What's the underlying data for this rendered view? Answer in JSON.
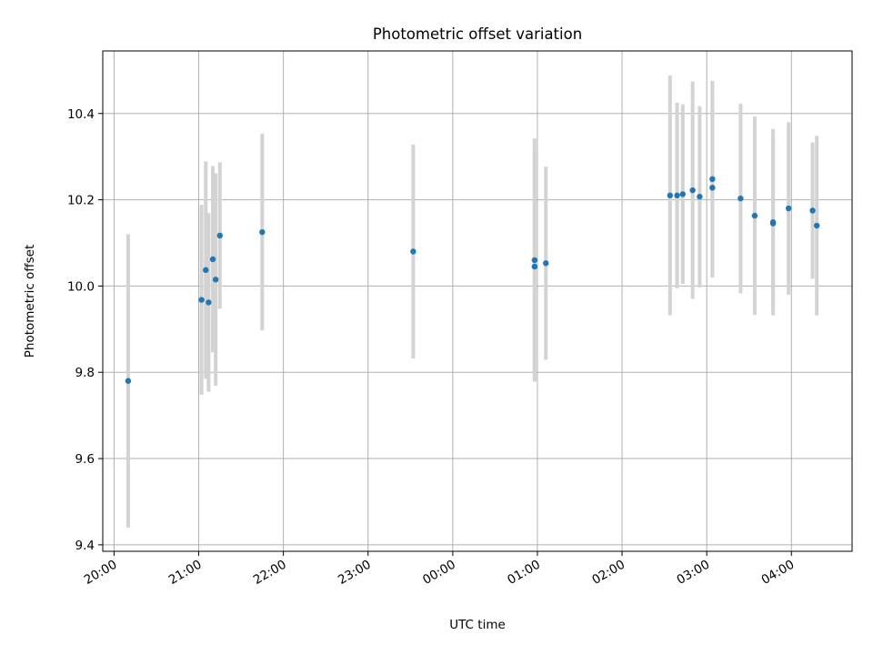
{
  "chart_data": {
    "type": "scatter",
    "title": "Photometric offset variation",
    "xlabel": "UTC time",
    "ylabel": "Photometric offset",
    "xlim": [
      "19:52",
      "04:43"
    ],
    "ylim": [
      9.385,
      10.545
    ],
    "grid": true,
    "x_ticks": [
      "20:00",
      "21:00",
      "22:00",
      "23:00",
      "00:00",
      "01:00",
      "02:00",
      "03:00",
      "04:00"
    ],
    "y_ticks": [
      9.4,
      9.6,
      9.8,
      10.0,
      10.2,
      10.4
    ],
    "y_tick_labels": [
      "9.4",
      "9.6",
      "9.8",
      "10.0",
      "10.2",
      "10.4"
    ],
    "colors": {
      "points": "#1f77b4",
      "errorbars": "#d3d3d3",
      "grid": "#b0b0b0"
    },
    "series": [
      {
        "points": [
          {
            "x": "20:10",
            "y": 9.78,
            "lo": 9.44,
            "hi": 10.12
          },
          {
            "x": "21:02",
            "y": 9.968,
            "lo": 9.748,
            "hi": 10.188
          },
          {
            "x": "21:05",
            "y": 10.037,
            "lo": 9.785,
            "hi": 10.289
          },
          {
            "x": "21:07",
            "y": 9.962,
            "lo": 9.755,
            "hi": 10.169
          },
          {
            "x": "21:10",
            "y": 10.062,
            "lo": 9.846,
            "hi": 10.278
          },
          {
            "x": "21:12",
            "y": 10.015,
            "lo": 9.769,
            "hi": 10.261
          },
          {
            "x": "21:15",
            "y": 10.117,
            "lo": 9.947,
            "hi": 10.287
          },
          {
            "x": "21:45",
            "y": 10.125,
            "lo": 9.897,
            "hi": 10.353
          },
          {
            "x": "23:32",
            "y": 10.08,
            "lo": 9.832,
            "hi": 10.328
          },
          {
            "x": "00:58",
            "y": 10.045,
            "lo": 9.781,
            "hi": 10.309
          },
          {
            "x": "00:58",
            "y": 10.06,
            "lo": 9.778,
            "hi": 10.342
          },
          {
            "x": "01:06",
            "y": 10.053,
            "lo": 9.829,
            "hi": 10.277
          },
          {
            "x": "02:34",
            "y": 10.21,
            "lo": 9.932,
            "hi": 10.488
          },
          {
            "x": "02:39",
            "y": 10.21,
            "lo": 9.995,
            "hi": 10.425
          },
          {
            "x": "02:43",
            "y": 10.213,
            "lo": 10.005,
            "hi": 10.421
          },
          {
            "x": "02:50",
            "y": 10.222,
            "lo": 9.97,
            "hi": 10.474
          },
          {
            "x": "02:55",
            "y": 10.207,
            "lo": 9.997,
            "hi": 10.417
          },
          {
            "x": "03:04",
            "y": 10.248,
            "lo": 10.02,
            "hi": 10.476
          },
          {
            "x": "03:04",
            "y": 10.228,
            "lo": 10.02,
            "hi": 10.436
          },
          {
            "x": "03:24",
            "y": 10.203,
            "lo": 9.983,
            "hi": 10.423
          },
          {
            "x": "03:34",
            "y": 10.163,
            "lo": 9.933,
            "hi": 10.393
          },
          {
            "x": "03:47",
            "y": 10.148,
            "lo": 9.932,
            "hi": 10.364
          },
          {
            "x": "03:47",
            "y": 10.145,
            "lo": 9.943,
            "hi": 10.347
          },
          {
            "x": "03:58",
            "y": 10.18,
            "lo": 9.98,
            "hi": 10.38
          },
          {
            "x": "04:15",
            "y": 10.175,
            "lo": 10.017,
            "hi": 10.333
          },
          {
            "x": "04:18",
            "y": 10.14,
            "lo": 9.932,
            "hi": 10.348
          }
        ]
      }
    ]
  }
}
